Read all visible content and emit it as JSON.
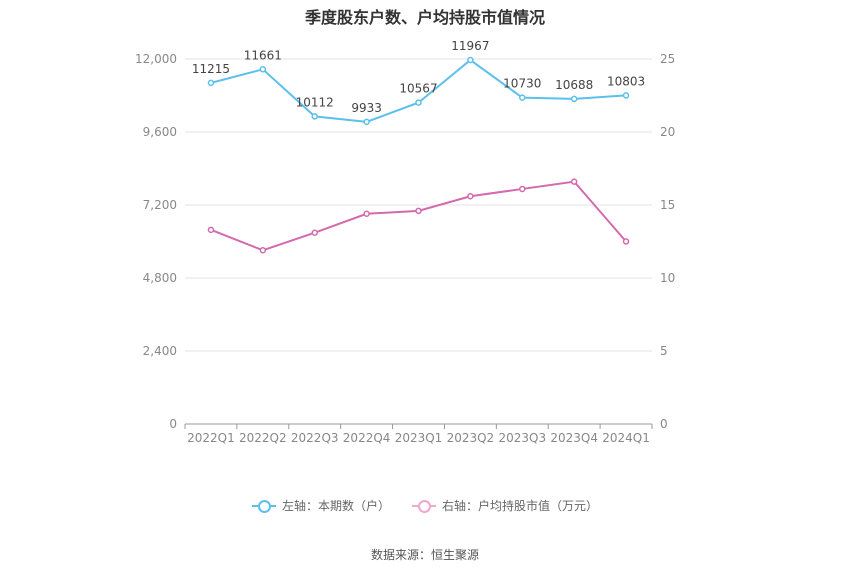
{
  "chart_data": {
    "type": "line",
    "title": "季度股东户数、户均持股市值情况",
    "categories": [
      "2022Q1",
      "2022Q2",
      "2022Q3",
      "2022Q4",
      "2023Q1",
      "2023Q2",
      "2023Q3",
      "2023Q4",
      "2024Q1"
    ],
    "series": [
      {
        "name": "左轴：本期数（户）",
        "axis": "left",
        "color": "#5bc0eb",
        "values": [
          11215,
          11661,
          10112,
          9933,
          10567,
          11967,
          10730,
          10688,
          10803
        ],
        "labels": [
          "11215",
          "11661",
          "10112",
          "9933",
          "10567",
          "11967",
          "10730",
          "10688",
          "10803"
        ]
      },
      {
        "name": "右轴：户均持股市值（万元）",
        "axis": "right",
        "color": "#d46aad",
        "values": [
          13.3,
          11.9,
          13.1,
          14.4,
          14.6,
          15.6,
          16.1,
          16.6,
          12.5
        ]
      }
    ],
    "left_axis": {
      "ylim": [
        0,
        12000
      ],
      "ticks": [
        "0",
        "2,400",
        "4,800",
        "7,200",
        "9,600",
        "12,000"
      ],
      "tick_values": [
        0,
        2400,
        4800,
        7200,
        9600,
        12000
      ]
    },
    "right_axis": {
      "ylim": [
        0,
        25
      ],
      "ticks": [
        "0",
        "5",
        "10",
        "15",
        "20",
        "25"
      ],
      "tick_values": [
        0,
        5,
        10,
        15,
        20,
        25
      ]
    },
    "grid": true,
    "legend_position": "bottom-center"
  },
  "legend": {
    "left_label": "左轴：本期数（户）",
    "right_label": "右轴：户均持股市值（万元）"
  },
  "source": "数据来源：恒生聚源"
}
